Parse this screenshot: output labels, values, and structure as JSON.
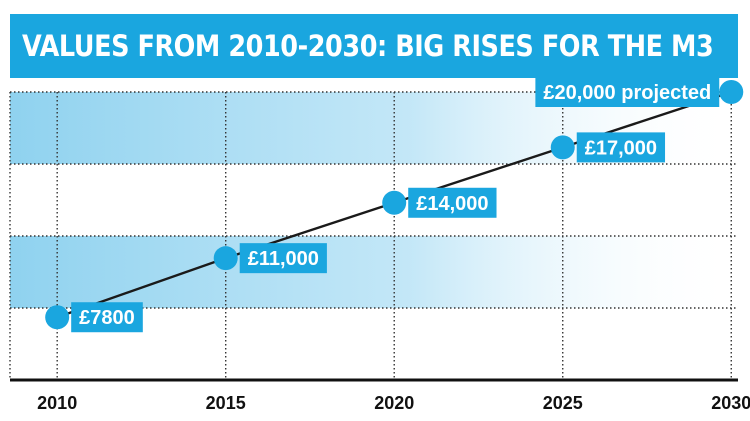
{
  "colors": {
    "accent": "#1aa6df",
    "band": "#8fd2ef",
    "line": "#1a1a1a",
    "text_on_accent": "#ffffff"
  },
  "chart_data": {
    "type": "line",
    "title": "VALUES FROM 2010-2030: BIG RISES FOR THE M3",
    "x": [
      2010,
      2015,
      2020,
      2025,
      2030
    ],
    "categories": [
      "2010",
      "2015",
      "2020",
      "2025",
      "2030"
    ],
    "series": [
      {
        "values": [
          7800,
          11000,
          14000,
          17000,
          20000
        ],
        "labels": [
          "£7800",
          "£11,000",
          "£14,000",
          "£17,000",
          "£20,000 projected"
        ]
      }
    ],
    "xlim": [
      2008.6,
      2030.2
    ],
    "ylim": [
      4400,
      20000
    ],
    "grid": true,
    "legend": "none"
  }
}
